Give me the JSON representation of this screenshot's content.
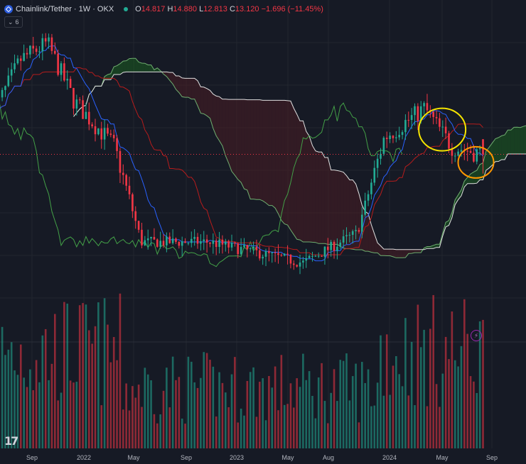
{
  "header": {
    "symbol_title": "Chainlink/Tether · 1W · OKX",
    "symbol_icon": "chainlink-icon",
    "ohlc": {
      "o_label": "O",
      "o": "14.817",
      "h_label": "H",
      "h": "14.880",
      "l_label": "L",
      "l": "12.813",
      "c_label": "C",
      "c": "13.120",
      "change": "−1.696 (−11.45%)"
    },
    "indicator_count": "6"
  },
  "colors": {
    "background": "#161a25",
    "up": "#22ab94",
    "down": "#f23645",
    "conversion_line": "#2962ff",
    "base_line": "#b71c1c",
    "lagging_span": "#43a047",
    "cloud_bull": "#1b5e20",
    "cloud_bear": "#4a1d24",
    "annotation_yellow": "#f5e400",
    "annotation_orange": "#ff9800"
  },
  "chart_data": {
    "type": "candlestick",
    "timeframe": "1W",
    "x_ticks": [
      "Sep",
      "2022",
      "May",
      "Sep",
      "2023",
      "May",
      "Aug",
      "2024",
      "May",
      "Sep"
    ],
    "price_anchors": [
      {
        "date": "2021-07",
        "price": 18
      },
      {
        "date": "2021-09",
        "price": 28
      },
      {
        "date": "2021-11",
        "price": 32
      },
      {
        "date": "2022-01",
        "price": 20
      },
      {
        "date": "2022-04",
        "price": 14
      },
      {
        "date": "2022-06",
        "price": 6.5
      },
      {
        "date": "2022-11",
        "price": 6.5
      },
      {
        "date": "2023-06",
        "price": 5.5
      },
      {
        "date": "2023-10",
        "price": 7
      },
      {
        "date": "2023-12",
        "price": 15
      },
      {
        "date": "2024-03",
        "price": 19
      },
      {
        "date": "2024-05",
        "price": 14
      },
      {
        "date": "2024-07",
        "price": 13.1
      }
    ],
    "last_close": 13.12,
    "indicators": [
      "Ichimoku Cloud",
      "Volume"
    ],
    "annotations": [
      {
        "shape": "ellipse",
        "color": "yellow",
        "period": "2024-03 to 2024-05"
      },
      {
        "shape": "ellipse",
        "color": "orange",
        "period": "2024-06 to 2024-07"
      }
    ],
    "grid": true
  }
}
